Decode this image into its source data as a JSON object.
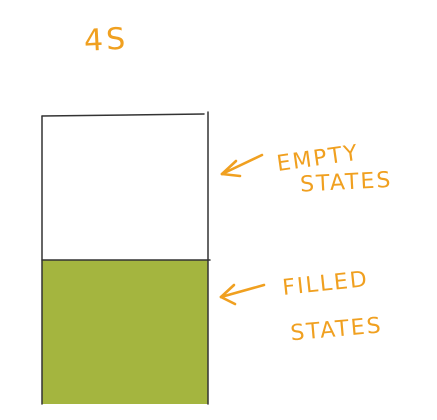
{
  "title": "4S",
  "labels": {
    "empty_line1": "EMPTY",
    "empty_line2": "STATES",
    "filled_line1": "FILLED",
    "filled_line2": "STATES"
  },
  "colors": {
    "ink": "#f0a020",
    "fill": "#a4b53f",
    "outline": "#333333"
  },
  "filled_fraction": 0.5
}
